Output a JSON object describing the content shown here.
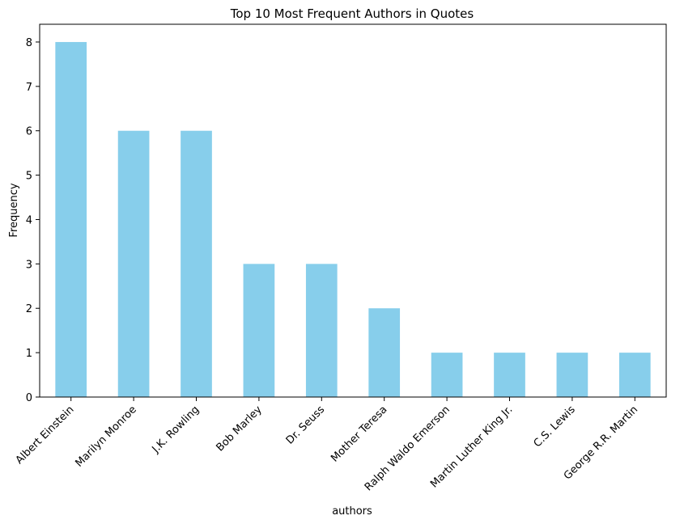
{
  "chart_data": {
    "type": "bar",
    "title": "Top 10 Most Frequent Authors in Quotes",
    "xlabel": "authors",
    "ylabel": "Frequency",
    "categories": [
      "Albert Einstein",
      "Marilyn Monroe",
      "J.K. Rowling",
      "Bob Marley",
      "Dr. Seuss",
      "Mother Teresa",
      "Ralph Waldo Emerson",
      "Martin Luther King Jr.",
      "C.S. Lewis",
      "George R.R. Martin"
    ],
    "values": [
      8,
      6,
      6,
      3,
      3,
      2,
      1,
      1,
      1,
      1
    ],
    "ylim": [
      0,
      8.4
    ],
    "yticks": [
      0,
      1,
      2,
      3,
      4,
      5,
      6,
      7,
      8
    ],
    "bar_color": "#87CEEB",
    "grid": false,
    "legend": false
  }
}
